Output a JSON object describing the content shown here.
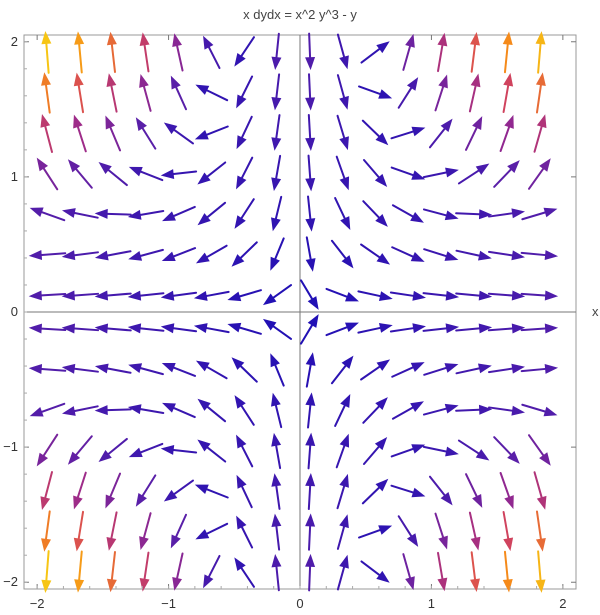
{
  "chart_data": {
    "type": "vector-field",
    "title": "x dydx = x^2 y^3 - y",
    "xlabel": "x",
    "ylabel": "",
    "xlim": [
      -2.1,
      2.1
    ],
    "ylim": [
      -2.05,
      2.05
    ],
    "xticks": [
      -2,
      -1,
      0,
      1,
      2
    ],
    "yticks": [
      -2,
      -1,
      0,
      1,
      2
    ],
    "xtick_labels": [
      "−2",
      "−1",
      "0",
      "1",
      "2"
    ],
    "ytick_labels": [
      "−2",
      "−1",
      "0",
      "1",
      "2"
    ],
    "grid": false,
    "frame": true,
    "equation": {
      "dx": "x",
      "dy": "x^2 y^3 - y"
    },
    "sample_x": [
      -1.925,
      -1.675,
      -1.425,
      -1.175,
      -0.925,
      -0.675,
      -0.425,
      -0.175,
      0.075,
      0.325,
      0.575,
      0.825,
      1.075,
      1.325,
      1.575,
      1.825
    ],
    "sample_y": [
      -1.925,
      -1.625,
      -1.325,
      -1.025,
      -0.725,
      -0.425,
      -0.125,
      0.125,
      0.425,
      0.725,
      1.025,
      1.325,
      1.625,
      1.925
    ],
    "color_scale": [
      "#1f0fb5",
      "#5a1fa8",
      "#9a2a8c",
      "#d5455a",
      "#f5891a",
      "#f7c514"
    ]
  }
}
